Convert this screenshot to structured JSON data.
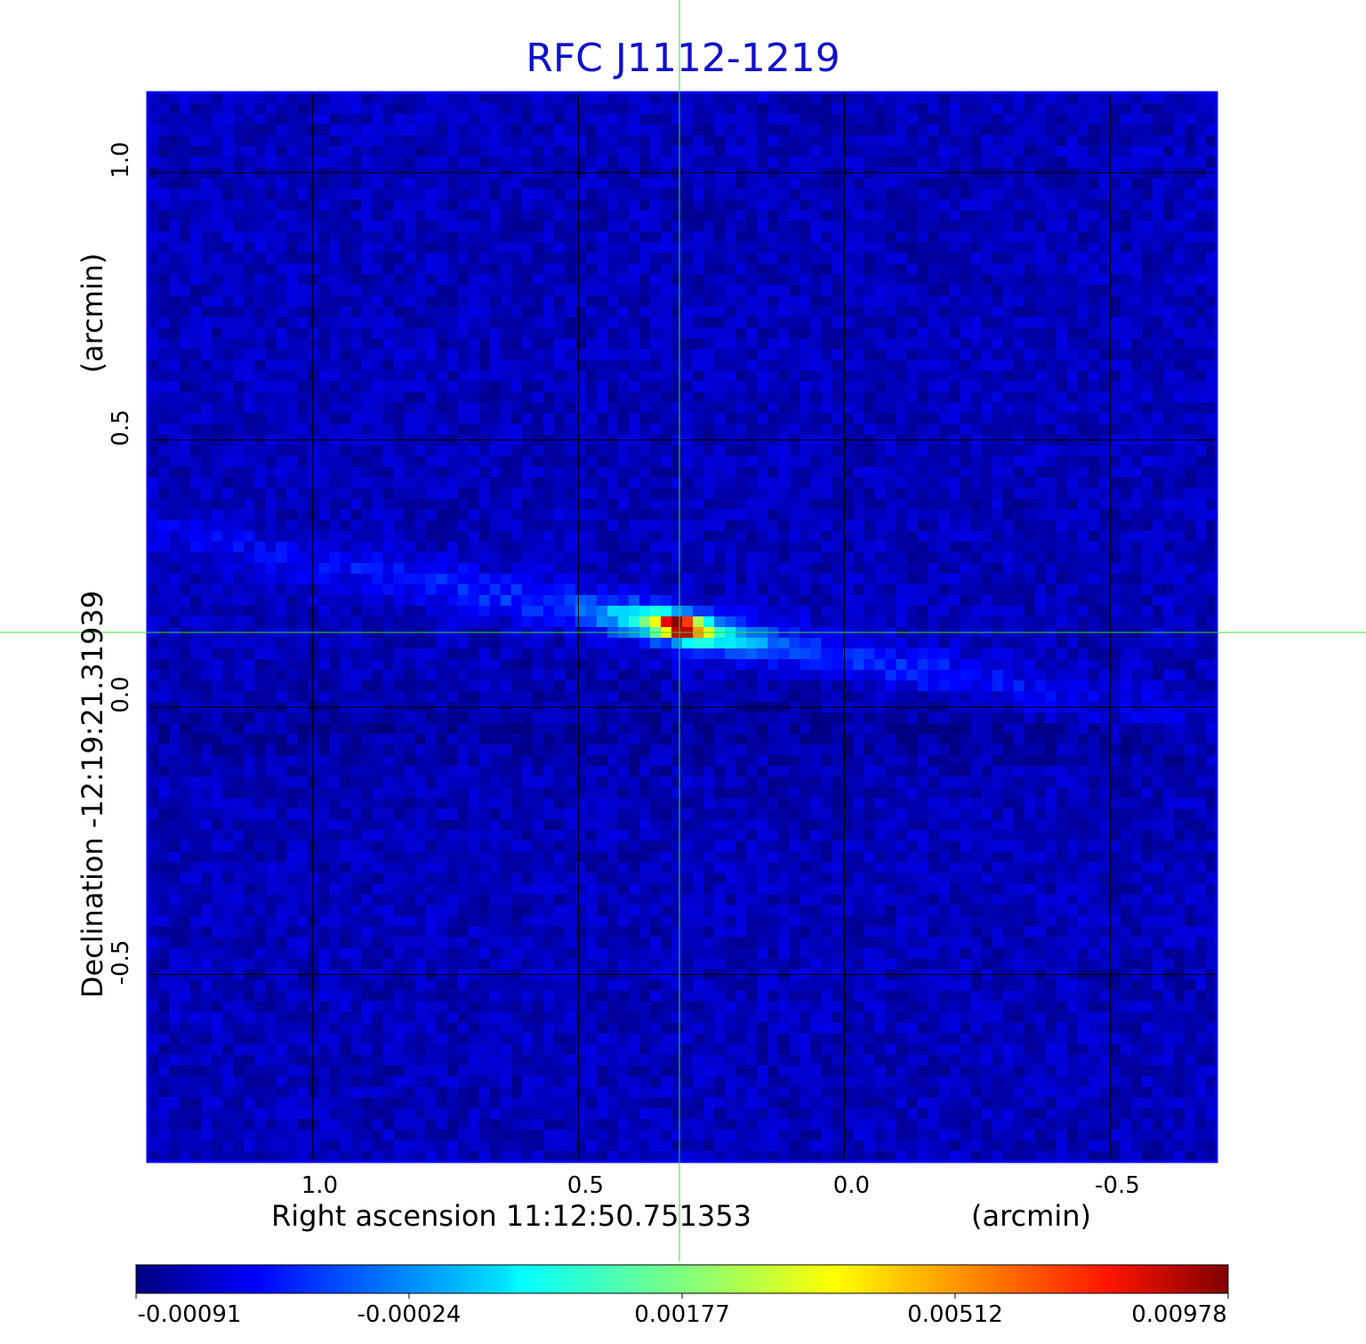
{
  "chart_data": {
    "type": "heatmap",
    "title": "RFC J1112-1219",
    "xlabel": "Right ascension  11:12:50.751353",
    "xunit": "(arcmin)",
    "ylabel": "Declination  -12:19:21.31939",
    "yunit": "(arcmin)",
    "xlim": [
      1.31,
      -0.7
    ],
    "ylim": [
      -0.85,
      1.15
    ],
    "x_ticks": [
      1.0,
      0.5,
      0.0,
      -0.5
    ],
    "x_tick_labels": [
      "1.0",
      "0.5",
      "0.0",
      "-0.5"
    ],
    "y_ticks": [
      1.0,
      0.5,
      0.0,
      -0.5
    ],
    "y_tick_labels": [
      "1.0",
      "0.5",
      "0.0",
      "-0.5"
    ],
    "grid": true,
    "crosshair": {
      "x": 0.31,
      "y": 0.14
    },
    "peak": {
      "x": 0.31,
      "y": 0.15,
      "value": 0.00978
    },
    "colorbar": {
      "colormap": "jet",
      "range": [
        -0.00091,
        0.00978
      ],
      "tick_values": [
        -0.00091,
        -0.00024,
        0.00177,
        0.00512,
        0.00978
      ],
      "tick_labels": [
        "-0.00091",
        "-0.00024",
        "0.00177",
        "0.00512",
        "0.00978"
      ]
    },
    "colors": {
      "title": "#1010cc",
      "frame": "#0000ee",
      "crosshair": "#33dd33",
      "grid": "#000000"
    }
  }
}
